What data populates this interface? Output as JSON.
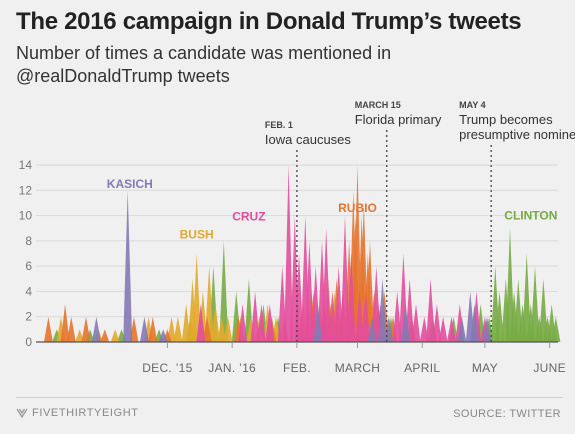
{
  "header": {
    "title": "The 2016 campaign in Donald Trump’s tweets",
    "subtitle": "Number of times a candidate was mentioned in @realDonaldTrump tweets"
  },
  "footer": {
    "brand": "FIVETHIRTYEIGHT",
    "source": "SOURCE: TWITTER"
  },
  "chart_data": {
    "type": "area",
    "title": "The 2016 campaign in Donald Trump’s tweets",
    "subtitle": "Number of times a candidate was mentioned in @realDonaldTrump tweets",
    "xlabel": "",
    "ylabel": "",
    "x_range": [
      "2015-10-01",
      "2016-06-05"
    ],
    "ylim": [
      0,
      14
    ],
    "y_ticks": [
      0,
      2,
      4,
      6,
      8,
      10,
      12,
      14
    ],
    "x_ticks": [
      {
        "date": "2015-12-01",
        "label": "DEC. ’15"
      },
      {
        "date": "2016-01-01",
        "label": "JAN. ’16"
      },
      {
        "date": "2016-02-01",
        "label": "FEB."
      },
      {
        "date": "2016-03-01",
        "label": "MARCH"
      },
      {
        "date": "2016-04-01",
        "label": "APRIL"
      },
      {
        "date": "2016-05-01",
        "label": "MAY"
      },
      {
        "date": "2016-06-01",
        "label": "JUNE"
      }
    ],
    "grid": true,
    "legend": "direct labels",
    "annotations": [
      {
        "date": "2016-02-01",
        "label": "FEB. 1",
        "text": "Iowa caucuses"
      },
      {
        "date": "2016-03-15",
        "label": "MARCH 15",
        "text": "Florida primary"
      },
      {
        "date": "2016-05-04",
        "label": "MAY 4",
        "text": "Trump becomes presumptive nominee"
      }
    ],
    "series": [
      {
        "name": "KASICH",
        "color": "#8479b4",
        "points": [
          [
            "2015-11-12",
            12
          ],
          [
            "2015-10-28",
            2
          ],
          [
            "2015-11-20",
            2
          ],
          [
            "2015-11-29",
            1
          ],
          [
            "2016-02-11",
            3
          ],
          [
            "2016-03-08",
            2
          ],
          [
            "2016-03-13",
            5
          ],
          [
            "2016-03-16",
            2
          ],
          [
            "2016-03-24",
            3
          ],
          [
            "2016-04-20",
            2
          ],
          [
            "2016-04-24",
            4
          ],
          [
            "2016-04-26",
            3
          ],
          [
            "2016-05-02",
            2
          ]
        ]
      },
      {
        "name": "BUSH",
        "color": "#e2aa2b",
        "points": [
          [
            "2015-10-11",
            2
          ],
          [
            "2015-10-20",
            1
          ],
          [
            "2015-10-29",
            1
          ],
          [
            "2015-11-06",
            1
          ],
          [
            "2015-11-22",
            2
          ],
          [
            "2015-12-03",
            2
          ],
          [
            "2015-12-06",
            2
          ],
          [
            "2015-12-10",
            3
          ],
          [
            "2015-12-13",
            5
          ],
          [
            "2015-12-15",
            7
          ],
          [
            "2015-12-18",
            4
          ],
          [
            "2015-12-21",
            6
          ],
          [
            "2015-12-24",
            3
          ],
          [
            "2015-12-27",
            2
          ],
          [
            "2015-12-30",
            2
          ],
          [
            "2016-01-05",
            2
          ],
          [
            "2016-01-10",
            2
          ],
          [
            "2016-01-14",
            2
          ],
          [
            "2016-01-18",
            3
          ],
          [
            "2016-01-22",
            2
          ],
          [
            "2016-01-26",
            2
          ],
          [
            "2016-02-04",
            3
          ],
          [
            "2016-02-08",
            4
          ],
          [
            "2016-02-12",
            3
          ],
          [
            "2016-02-16",
            5
          ],
          [
            "2016-02-19",
            4
          ]
        ]
      },
      {
        "name": "CRUZ",
        "color": "#e34c9c",
        "points": [
          [
            "2015-12-17",
            3
          ],
          [
            "2016-01-06",
            3
          ],
          [
            "2016-01-12",
            4
          ],
          [
            "2016-01-15",
            3
          ],
          [
            "2016-01-19",
            3
          ],
          [
            "2016-01-25",
            6
          ],
          [
            "2016-01-28",
            14
          ],
          [
            "2016-01-31",
            10
          ],
          [
            "2016-02-02",
            7
          ],
          [
            "2016-02-05",
            10
          ],
          [
            "2016-02-07",
            8
          ],
          [
            "2016-02-10",
            6
          ],
          [
            "2016-02-13",
            8
          ],
          [
            "2016-02-15",
            9
          ],
          [
            "2016-02-18",
            4
          ],
          [
            "2016-02-21",
            6
          ],
          [
            "2016-02-24",
            10
          ],
          [
            "2016-02-27",
            7
          ],
          [
            "2016-03-02",
            4
          ],
          [
            "2016-03-05",
            4
          ],
          [
            "2016-03-10",
            6
          ],
          [
            "2016-03-12",
            3
          ],
          [
            "2016-03-20",
            4
          ],
          [
            "2016-03-23",
            7
          ],
          [
            "2016-03-26",
            5
          ],
          [
            "2016-03-29",
            3
          ],
          [
            "2016-04-02",
            2
          ],
          [
            "2016-04-05",
            5
          ],
          [
            "2016-04-08",
            3
          ],
          [
            "2016-04-11",
            2
          ],
          [
            "2016-04-15",
            2
          ],
          [
            "2016-04-19",
            3
          ],
          [
            "2016-04-27",
            4
          ],
          [
            "2016-05-01",
            2
          ]
        ]
      },
      {
        "name": "RUBIO",
        "color": "#e6742f",
        "points": [
          [
            "2015-10-05",
            2
          ],
          [
            "2015-10-13",
            3
          ],
          [
            "2015-10-16",
            2
          ],
          [
            "2015-10-23",
            2
          ],
          [
            "2015-11-01",
            1
          ],
          [
            "2015-11-15",
            2
          ],
          [
            "2015-11-24",
            2
          ],
          [
            "2015-12-01",
            1
          ],
          [
            "2015-12-20",
            2
          ],
          [
            "2016-01-04",
            2
          ],
          [
            "2016-01-20",
            2
          ],
          [
            "2016-02-03",
            2
          ],
          [
            "2016-02-09",
            4
          ],
          [
            "2016-02-14",
            3
          ],
          [
            "2016-02-17",
            3
          ],
          [
            "2016-02-20",
            5
          ],
          [
            "2016-02-23",
            4
          ],
          [
            "2016-02-26",
            8
          ],
          [
            "2016-02-28",
            12
          ],
          [
            "2016-02-29",
            10
          ],
          [
            "2016-03-01",
            14
          ],
          [
            "2016-03-03",
            10
          ],
          [
            "2016-03-04",
            11
          ],
          [
            "2016-03-06",
            7
          ],
          [
            "2016-03-07",
            8
          ],
          [
            "2016-03-09",
            4
          ],
          [
            "2016-03-11",
            3
          ],
          [
            "2016-03-14",
            4
          ],
          [
            "2016-03-18",
            2
          ]
        ]
      },
      {
        "name": "CLINTON",
        "color": "#77ab43",
        "points": [
          [
            "2015-10-09",
            1
          ],
          [
            "2015-10-25",
            1
          ],
          [
            "2015-11-09",
            1
          ],
          [
            "2015-11-27",
            1
          ],
          [
            "2015-12-12",
            2
          ],
          [
            "2015-12-23",
            6
          ],
          [
            "2015-12-28",
            8
          ],
          [
            "2016-01-03",
            4
          ],
          [
            "2016-01-09",
            5
          ],
          [
            "2016-01-16",
            3
          ],
          [
            "2016-01-23",
            2
          ],
          [
            "2016-02-06",
            2
          ],
          [
            "2016-02-22",
            2
          ],
          [
            "2016-03-02",
            2
          ],
          [
            "2016-03-17",
            2
          ],
          [
            "2016-03-27",
            2
          ],
          [
            "2016-04-06",
            2
          ],
          [
            "2016-04-16",
            2
          ],
          [
            "2016-04-29",
            3
          ],
          [
            "2016-05-03",
            2
          ],
          [
            "2016-05-06",
            6
          ],
          [
            "2016-05-08",
            4
          ],
          [
            "2016-05-11",
            5
          ],
          [
            "2016-05-13",
            9
          ],
          [
            "2016-05-15",
            4
          ],
          [
            "2016-05-17",
            5
          ],
          [
            "2016-05-19",
            3
          ],
          [
            "2016-05-21",
            7
          ],
          [
            "2016-05-23",
            3
          ],
          [
            "2016-05-25",
            6
          ],
          [
            "2016-05-27",
            2
          ],
          [
            "2016-05-29",
            5
          ],
          [
            "2016-05-31",
            2
          ],
          [
            "2016-06-02",
            3
          ],
          [
            "2016-06-04",
            2
          ]
        ]
      }
    ],
    "series_labels": [
      {
        "series": "KASICH",
        "date": "2015-11-13",
        "value": 12.2
      },
      {
        "series": "BUSH",
        "date": "2015-12-15",
        "value": 8.2
      },
      {
        "series": "CRUZ",
        "date": "2016-01-09",
        "value": 9.6
      },
      {
        "series": "RUBIO",
        "date": "2016-03-01",
        "value": 10.3
      },
      {
        "series": "CLINTON",
        "date": "2016-05-23",
        "value": 9.7
      }
    ]
  }
}
